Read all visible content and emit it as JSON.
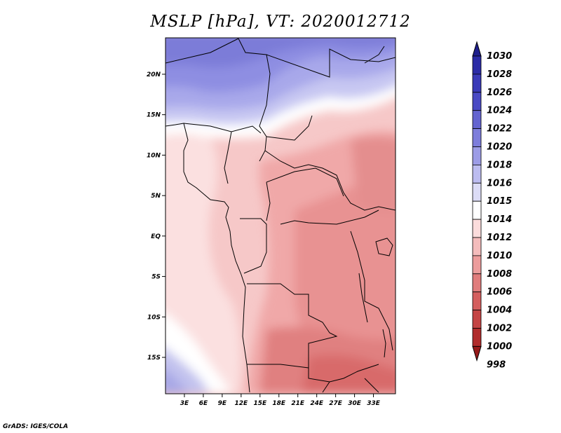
{
  "title": "MSLP [hPa], VT: 2020012712",
  "credit": "GrADS: IGES/COLA",
  "map": {
    "lon_range": [
      0,
      36.5
    ],
    "lat_range": [
      -19.5,
      24.5
    ],
    "lon_ticks": [
      "3E",
      "6E",
      "9E",
      "12E",
      "15E",
      "18E",
      "21E",
      "24E",
      "27E",
      "30E",
      "33E"
    ],
    "lat_ticks": [
      "20N",
      "15N",
      "10N",
      "5N",
      "EQ",
      "5S",
      "10S",
      "15S"
    ],
    "lon_tick_values": [
      3,
      6,
      9,
      12,
      15,
      18,
      21,
      24,
      27,
      30,
      33
    ],
    "lat_tick_values": [
      20,
      15,
      10,
      5,
      0,
      -5,
      -10,
      -15
    ]
  },
  "colorbar": {
    "levels": [
      "1030",
      "1028",
      "1026",
      "1024",
      "1022",
      "1020",
      "1018",
      "1016",
      "1015",
      "1014",
      "1012",
      "1010",
      "1008",
      "1006",
      "1004",
      "1002",
      "1000",
      "998"
    ],
    "colors": [
      "#1f1f8c",
      "#2b2ba6",
      "#3a3ab8",
      "#4a4ac4",
      "#6464d0",
      "#7d7ddb",
      "#9c9ce6",
      "#bcbcf0",
      "#dcdcf6",
      "#ffffff",
      "#fbdcdc",
      "#f4bcbc",
      "#ec9c9c",
      "#e07c7c",
      "#d45e5e",
      "#c44444",
      "#b02c2c",
      "#961a1a"
    ]
  },
  "colors": {
    "frame": "#000000",
    "coast": "#000000"
  }
}
